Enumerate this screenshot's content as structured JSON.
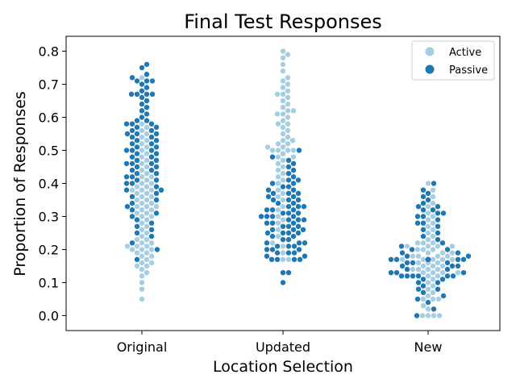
{
  "chart_data": {
    "type": "scatter",
    "subtype": "swarm",
    "title": "Final Test Responses",
    "xlabel": "Location Selection",
    "ylabel": "Proportion of Responses",
    "categories": [
      "Original",
      "Updated",
      "New"
    ],
    "ylim": [
      -0.045,
      0.845
    ],
    "yticks": [
      0.0,
      0.1,
      0.2,
      0.3,
      0.4,
      0.5,
      0.6,
      0.7,
      0.8
    ],
    "ytick_labels": [
      "0.0",
      "0.1",
      "0.2",
      "0.3",
      "0.4",
      "0.5",
      "0.6",
      "0.7",
      "0.8"
    ],
    "grid": false,
    "legend_position": "top-right",
    "colors": {
      "Active": "#a6cee3",
      "Passive": "#1f78b4"
    },
    "series": [
      {
        "name": "Active",
        "points": {
          "Original": [
            0.05,
            0.08,
            0.1,
            0.12,
            0.13,
            0.14,
            0.15,
            0.15,
            0.16,
            0.16,
            0.17,
            0.18,
            0.18,
            0.19,
            0.19,
            0.2,
            0.2,
            0.2,
            0.21,
            0.21,
            0.21,
            0.22,
            0.22,
            0.23,
            0.23,
            0.24,
            0.25,
            0.26,
            0.27,
            0.28,
            0.29,
            0.3,
            0.3,
            0.31,
            0.31,
            0.32,
            0.32,
            0.33,
            0.33,
            0.33,
            0.34,
            0.34,
            0.35,
            0.35,
            0.36,
            0.36,
            0.37,
            0.37,
            0.38,
            0.38,
            0.38,
            0.39,
            0.39,
            0.4,
            0.4,
            0.41,
            0.42,
            0.42,
            0.43,
            0.44,
            0.45,
            0.46,
            0.47,
            0.48,
            0.49,
            0.5,
            0.51,
            0.52,
            0.53,
            0.54,
            0.55,
            0.56,
            0.57,
            0.58,
            0.72
          ],
          "Updated": [
            0.17,
            0.17,
            0.19,
            0.21,
            0.22,
            0.24,
            0.26,
            0.28,
            0.29,
            0.3,
            0.32,
            0.33,
            0.35,
            0.36,
            0.37,
            0.38,
            0.4,
            0.41,
            0.42,
            0.43,
            0.44,
            0.45,
            0.46,
            0.47,
            0.48,
            0.48,
            0.49,
            0.5,
            0.5,
            0.5,
            0.5,
            0.51,
            0.51,
            0.52,
            0.52,
            0.53,
            0.53,
            0.54,
            0.55,
            0.56,
            0.57,
            0.58,
            0.58,
            0.59,
            0.6,
            0.61,
            0.61,
            0.62,
            0.62,
            0.63,
            0.64,
            0.65,
            0.66,
            0.67,
            0.67,
            0.68,
            0.69,
            0.7,
            0.71,
            0.72,
            0.74,
            0.76,
            0.78,
            0.79,
            0.8
          ],
          "New": [
            0.0,
            0.0,
            0.0,
            0.0,
            0.02,
            0.03,
            0.05,
            0.05,
            0.05,
            0.06,
            0.07,
            0.08,
            0.09,
            0.1,
            0.11,
            0.12,
            0.12,
            0.13,
            0.13,
            0.13,
            0.13,
            0.14,
            0.14,
            0.14,
            0.14,
            0.15,
            0.15,
            0.15,
            0.16,
            0.16,
            0.16,
            0.17,
            0.17,
            0.17,
            0.17,
            0.17,
            0.18,
            0.18,
            0.18,
            0.18,
            0.19,
            0.19,
            0.19,
            0.2,
            0.2,
            0.2,
            0.21,
            0.21,
            0.21,
            0.21,
            0.22,
            0.22,
            0.22,
            0.23,
            0.24,
            0.25,
            0.26,
            0.27,
            0.28,
            0.29,
            0.3,
            0.31,
            0.33,
            0.34,
            0.36,
            0.38,
            0.4
          ]
        }
      },
      {
        "name": "Passive",
        "points": {
          "Original": [
            0.17,
            0.2,
            0.22,
            0.24,
            0.25,
            0.26,
            0.27,
            0.28,
            0.29,
            0.3,
            0.31,
            0.32,
            0.33,
            0.34,
            0.35,
            0.36,
            0.37,
            0.38,
            0.38,
            0.39,
            0.4,
            0.4,
            0.41,
            0.41,
            0.42,
            0.42,
            0.43,
            0.43,
            0.44,
            0.44,
            0.45,
            0.45,
            0.46,
            0.46,
            0.46,
            0.47,
            0.47,
            0.48,
            0.48,
            0.49,
            0.49,
            0.5,
            0.5,
            0.5,
            0.51,
            0.51,
            0.52,
            0.52,
            0.53,
            0.53,
            0.54,
            0.54,
            0.55,
            0.55,
            0.55,
            0.56,
            0.56,
            0.57,
            0.57,
            0.58,
            0.58,
            0.58,
            0.59,
            0.59,
            0.6,
            0.61,
            0.62,
            0.63,
            0.64,
            0.65,
            0.66,
            0.67,
            0.67,
            0.67,
            0.67,
            0.68,
            0.69,
            0.7,
            0.71,
            0.71,
            0.71,
            0.72,
            0.73,
            0.75,
            0.76
          ],
          "Updated": [
            0.1,
            0.13,
            0.13,
            0.17,
            0.17,
            0.17,
            0.17,
            0.18,
            0.18,
            0.19,
            0.19,
            0.19,
            0.2,
            0.2,
            0.2,
            0.21,
            0.21,
            0.21,
            0.22,
            0.22,
            0.22,
            0.23,
            0.23,
            0.24,
            0.24,
            0.25,
            0.25,
            0.25,
            0.25,
            0.26,
            0.26,
            0.26,
            0.27,
            0.27,
            0.27,
            0.28,
            0.28,
            0.28,
            0.29,
            0.29,
            0.29,
            0.3,
            0.3,
            0.3,
            0.3,
            0.31,
            0.31,
            0.31,
            0.32,
            0.32,
            0.32,
            0.33,
            0.33,
            0.33,
            0.34,
            0.34,
            0.35,
            0.35,
            0.35,
            0.36,
            0.36,
            0.37,
            0.37,
            0.37,
            0.38,
            0.38,
            0.39,
            0.39,
            0.4,
            0.4,
            0.41,
            0.41,
            0.42,
            0.43,
            0.44,
            0.45,
            0.46,
            0.47,
            0.48,
            0.5
          ],
          "New": [
            0.0,
            0.02,
            0.04,
            0.05,
            0.06,
            0.07,
            0.08,
            0.08,
            0.09,
            0.1,
            0.1,
            0.11,
            0.11,
            0.12,
            0.12,
            0.12,
            0.12,
            0.12,
            0.12,
            0.13,
            0.13,
            0.13,
            0.14,
            0.14,
            0.15,
            0.15,
            0.15,
            0.16,
            0.16,
            0.16,
            0.17,
            0.17,
            0.17,
            0.17,
            0.17,
            0.17,
            0.17,
            0.17,
            0.17,
            0.18,
            0.18,
            0.19,
            0.19,
            0.2,
            0.2,
            0.21,
            0.22,
            0.23,
            0.24,
            0.25,
            0.26,
            0.27,
            0.28,
            0.28,
            0.29,
            0.3,
            0.3,
            0.31,
            0.31,
            0.32,
            0.32,
            0.33,
            0.33,
            0.34,
            0.35,
            0.36,
            0.37,
            0.38,
            0.4
          ]
        }
      }
    ]
  }
}
